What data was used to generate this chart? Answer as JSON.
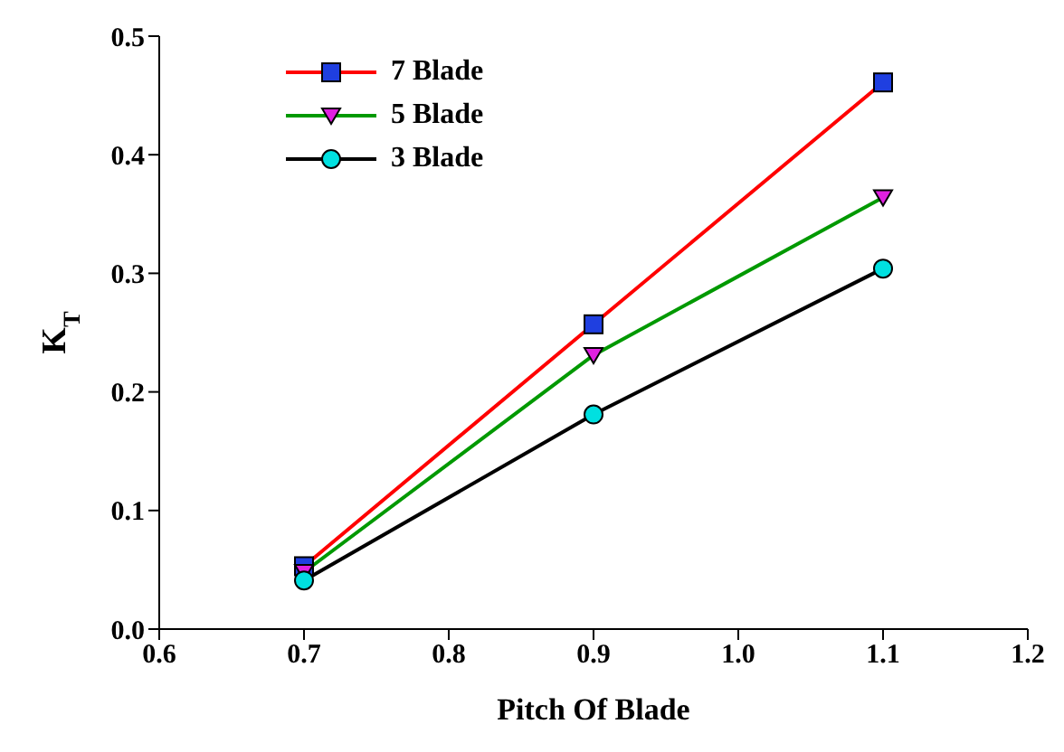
{
  "chart_data": {
    "type": "line",
    "xlabel": "Pitch Of Blade",
    "ylabel": "K$_{T}$",
    "x": [
      0.7,
      0.9,
      1.1
    ],
    "series": [
      {
        "name": "7 Blade",
        "color": "#ff0000",
        "marker": "square",
        "colors": [
          "#1f3fe0",
          "#1f3fe0",
          "#1f3fe0"
        ],
        "values": [
          0.053,
          0.257,
          0.461
        ]
      },
      {
        "name": "5 Blade",
        "color": "#009900",
        "marker": "triangle",
        "colors": [
          "#e020e0",
          "#e020e0",
          "#e020e0"
        ],
        "values": [
          0.048,
          0.231,
          0.364
        ]
      },
      {
        "name": "3 Blade",
        "color": "#000000",
        "marker": "circle",
        "colors": [
          "#00e0e0",
          "#00e0e0",
          "#00e0e0"
        ],
        "values": [
          0.041,
          0.181,
          0.304
        ]
      }
    ],
    "xlim": [
      0.6,
      1.2
    ],
    "xticks": [
      0.6,
      0.7,
      0.8,
      0.9,
      {
        "value": 1.0,
        "label": "1.0"
      },
      1.1,
      1.2
    ],
    "ylim": [
      0,
      0.5
    ],
    "yticks": [
      {
        "value": 0,
        "label": "0.0"
      },
      0.1,
      0.2,
      0.3,
      0.4,
      0.5
    ],
    "grid": false,
    "legend": "top left",
    "line_style": "solid"
  }
}
